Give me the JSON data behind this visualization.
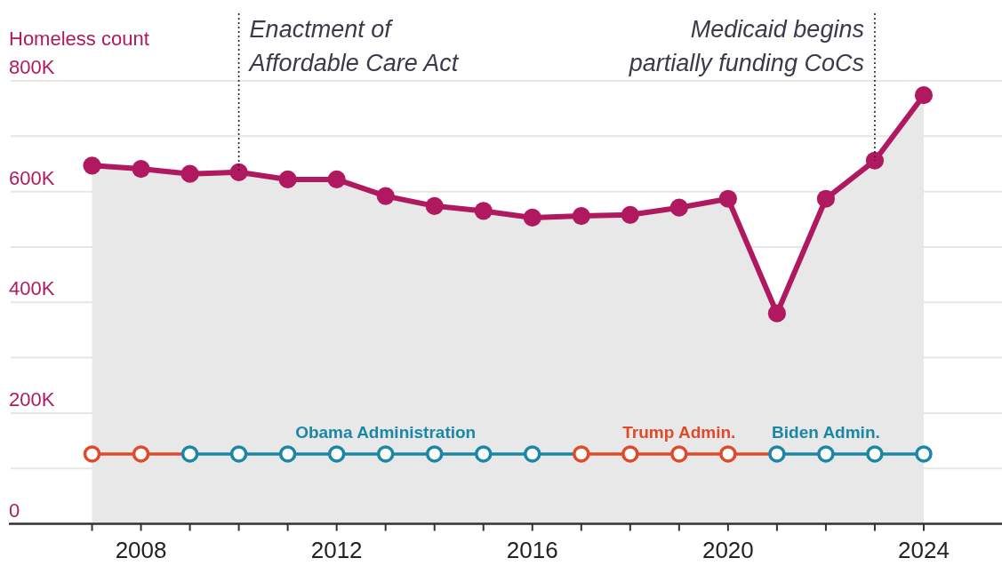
{
  "chart_data": {
    "type": "area",
    "ylabel": "Homeless count",
    "x": [
      2007,
      2008,
      2009,
      2010,
      2011,
      2012,
      2013,
      2014,
      2015,
      2016,
      2017,
      2018,
      2019,
      2020,
      2021,
      2022,
      2023,
      2024
    ],
    "series": [
      {
        "color": "#b0195f",
        "values": [
          647000,
          641000,
          632000,
          635000,
          622000,
          622000,
          592000,
          574000,
          565000,
          553000,
          556000,
          558000,
          571000,
          587000,
          380000,
          587000,
          656000,
          774000
        ]
      },
      {
        "type": "line",
        "colors": [
          "#e04a2a",
          "#e04a2a",
          "#1a87a6",
          "#1a87a6",
          "#1a87a6",
          "#1a87a6",
          "#1a87a6",
          "#1a87a6",
          "#1a87a6",
          "#1a87a6",
          "#e04a2a",
          "#e04a2a",
          "#e04a2a",
          "#e04a2a",
          "#1a87a6",
          "#1a87a6",
          "#1a87a6",
          "#1a87a6"
        ],
        "values": [
          126000,
          126000,
          126000,
          126000,
          126000,
          126000,
          126000,
          126000,
          126000,
          126000,
          126000,
          126000,
          126000,
          126000,
          126000,
          126000,
          126000,
          126000
        ]
      }
    ],
    "xlim": [
      2005.3,
      2025.6
    ],
    "xticks": [
      {
        "value": 2007,
        "label": null
      },
      2008,
      {
        "value": 2009,
        "label": null
      },
      {
        "value": 2010,
        "label": null
      },
      {
        "value": 2011,
        "label": null
      },
      2012,
      {
        "value": 2013,
        "label": null
      },
      {
        "value": 2014,
        "label": null
      },
      {
        "value": 2015,
        "label": null
      },
      2016,
      {
        "value": 2017,
        "label": null
      },
      {
        "value": 2018,
        "label": null
      },
      {
        "value": 2019,
        "label": null
      },
      2020,
      {
        "value": 2021,
        "label": null
      },
      {
        "value": 2022,
        "label": null
      },
      {
        "value": 2023,
        "label": null
      },
      2024
    ],
    "ylim": [
      0,
      800000
    ],
    "yticks": [
      0,
      {
        "value": 100000,
        "label": null
      },
      {
        "value": 200000,
        "label": "200K"
      },
      {
        "value": 300000,
        "label": null
      },
      {
        "value": 400000,
        "label": "400K"
      },
      {
        "value": 500000,
        "label": null
      },
      {
        "value": 600000,
        "label": "600K"
      },
      {
        "value": 700000,
        "label": null
      },
      {
        "value": 800000,
        "label": "800K"
      }
    ],
    "grid": "y",
    "marker": "circle",
    "ref_lines": [
      {
        "axis": "x",
        "value": 2010,
        "label": "Enactment of Affordable Care Act",
        "line_style": "dotted"
      },
      {
        "axis": "x",
        "value": 2023,
        "label": "Medicaid begins partially funding CoCs",
        "line_style": "dotted"
      }
    ],
    "annotations": [
      {
        "text": "Obama Administration",
        "x": 2013,
        "y": 126000
      },
      {
        "text": "Trump Admin.",
        "x": 2019,
        "y": 126000
      },
      {
        "text": "Biden Admin.",
        "x": 2022,
        "y": 126000
      }
    ]
  }
}
